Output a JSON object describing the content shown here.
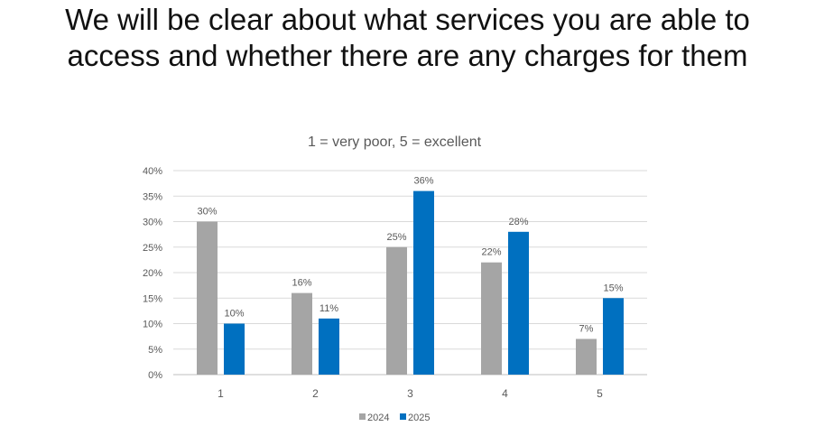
{
  "slide": {
    "heading_line1": "We will be clear about what services you are able to",
    "heading_line2": "access and whether there are any charges for them"
  },
  "chart_data": {
    "type": "bar",
    "title": "1 = very poor, 5 = excellent",
    "xlabel": "",
    "ylabel": "",
    "categories": [
      "1",
      "2",
      "3",
      "4",
      "5"
    ],
    "series": [
      {
        "name": "2024",
        "color": "#a5a5a5",
        "values": [
          30,
          16,
          25,
          22,
          7
        ],
        "labels": [
          "30%",
          "16%",
          "25%",
          "22%",
          "7%"
        ]
      },
      {
        "name": "2025",
        "color": "#0070c0",
        "values": [
          10,
          11,
          36,
          28,
          15
        ],
        "labels": [
          "10%",
          "11%",
          "36%",
          "28%",
          "15%"
        ]
      }
    ],
    "ylim": [
      0,
      40
    ],
    "yticks": [
      "0%",
      "5%",
      "10%",
      "15%",
      "20%",
      "25%",
      "30%",
      "35%",
      "40%"
    ],
    "grid": true,
    "legend_position": "bottom"
  }
}
